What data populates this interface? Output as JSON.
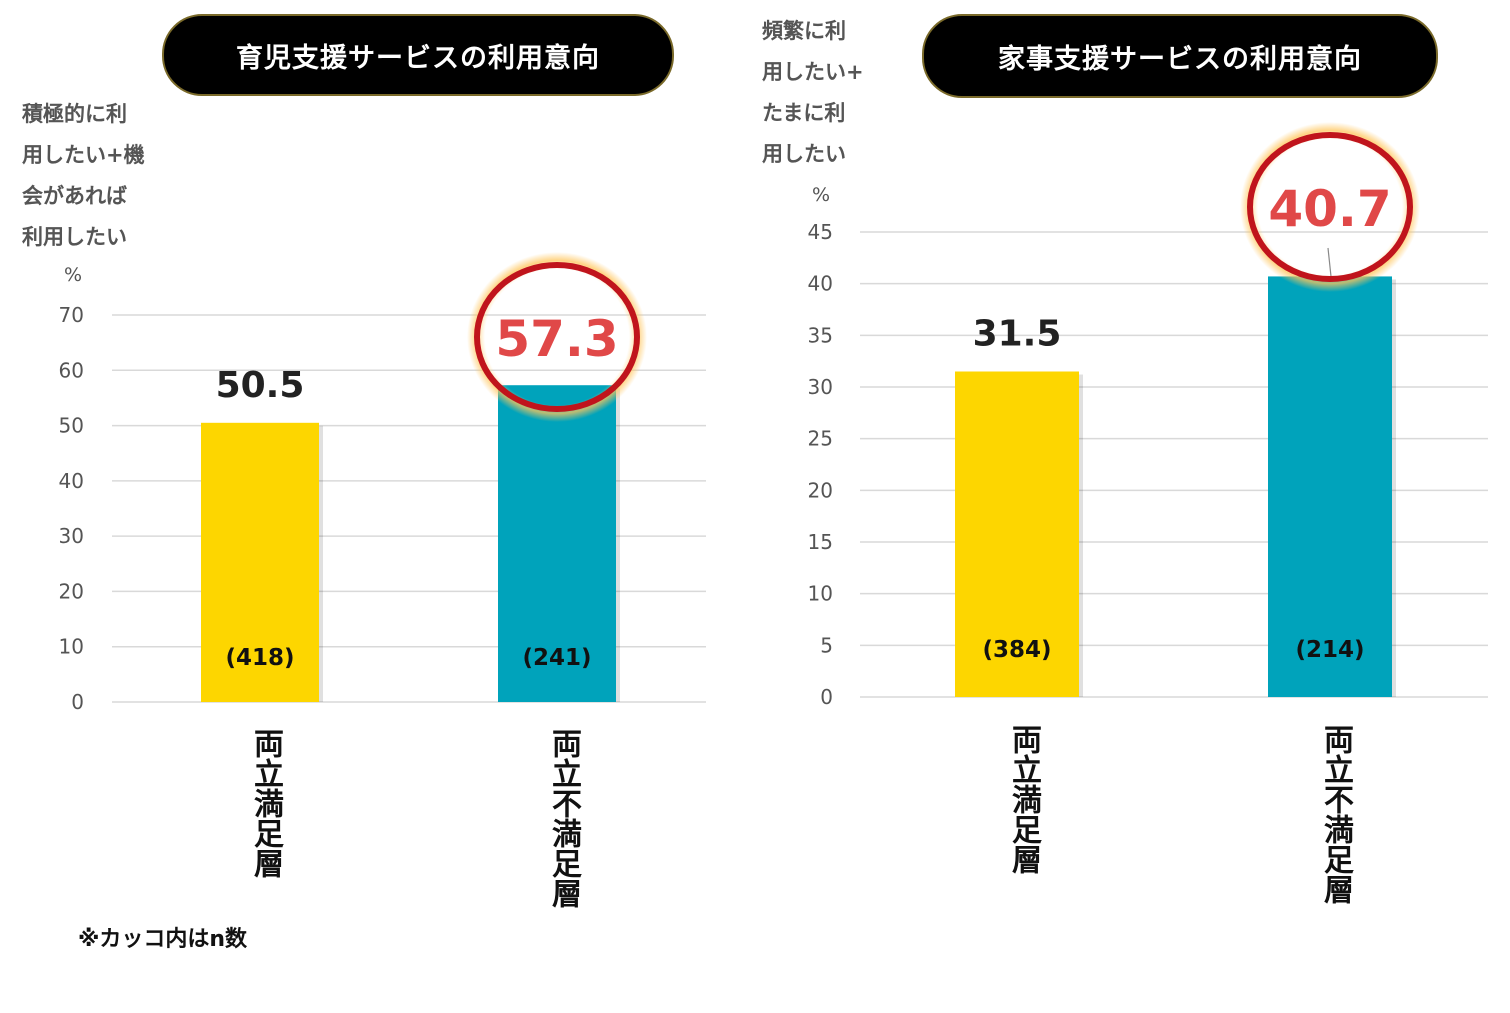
{
  "footnote": "※カッコ内はn数",
  "colors": {
    "yellow": "#FDD600",
    "teal": "#00A3BB",
    "highlight": "#E04848",
    "ring": "#C0141C",
    "grid": "#D9D9D9"
  },
  "chart_data": [
    {
      "type": "bar",
      "title": "育児支援サービスの利用意向",
      "ylabel_lines": [
        "積極的に利",
        "用したい+機",
        "会があれば",
        "利用したい"
      ],
      "unit": "%",
      "categories": [
        "両立満足層",
        "両立不満足層"
      ],
      "values": [
        50.5,
        57.3
      ],
      "value_labels": [
        "50.5",
        "57.3"
      ],
      "n_labels": [
        "(418)",
        "(241)"
      ],
      "highlight_index": 1,
      "ylim": [
        0,
        70
      ],
      "yticks": [
        0,
        10,
        20,
        30,
        40,
        50,
        60,
        70
      ],
      "grid": true
    },
    {
      "type": "bar",
      "title": "家事支援サービスの利用意向",
      "ylabel_lines": [
        "頻繁に利",
        "用したい+",
        "たまに利",
        "用したい"
      ],
      "unit": "%",
      "categories": [
        "両立満足層",
        "両立不満足層"
      ],
      "values": [
        31.5,
        40.7
      ],
      "value_labels": [
        "31.5",
        "40.7"
      ],
      "n_labels": [
        "(384)",
        "(214)"
      ],
      "highlight_index": 1,
      "ylim": [
        0,
        45
      ],
      "yticks": [
        0,
        5,
        10,
        15,
        20,
        25,
        30,
        35,
        40,
        45
      ],
      "grid": true
    }
  ]
}
